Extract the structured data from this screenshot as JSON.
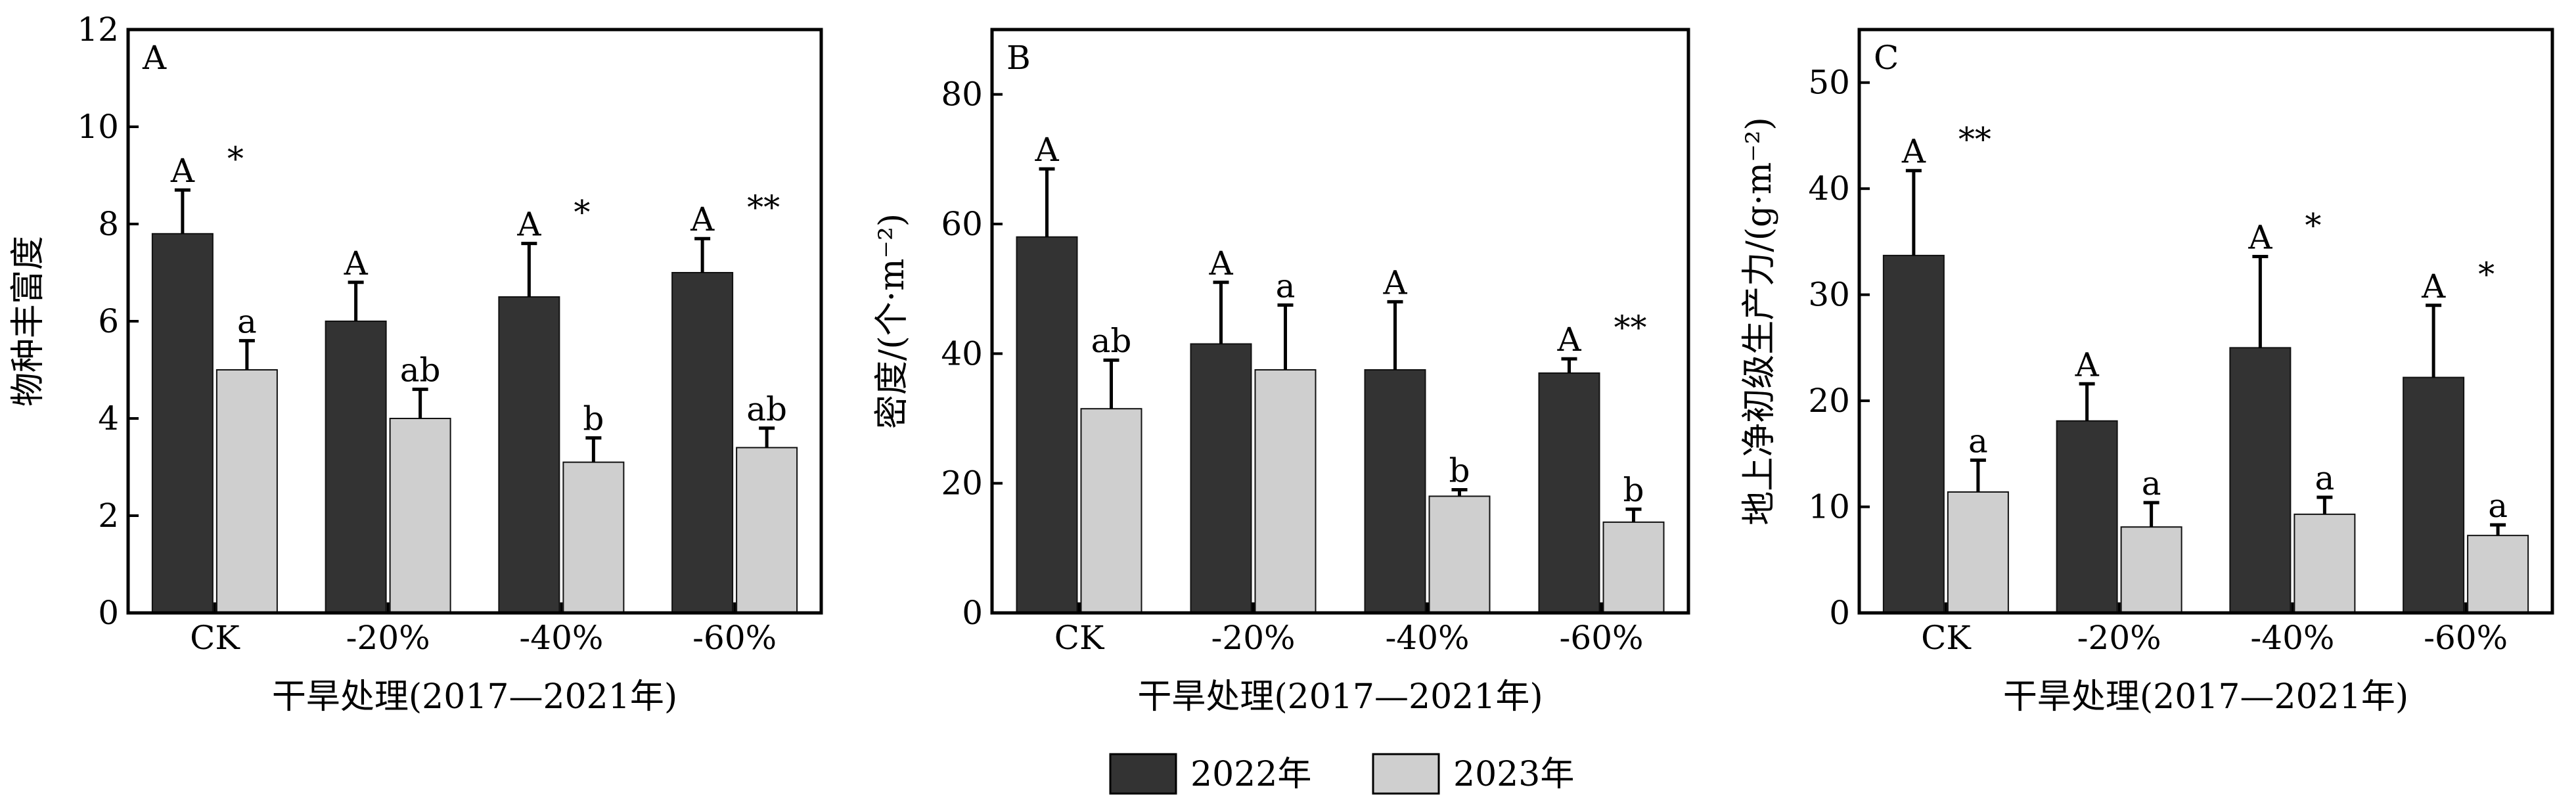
{
  "chart_data": [
    {
      "type": "bar",
      "panel_label": "A",
      "xlabel": "干旱处理(2017—2021年)",
      "ylabel": "物种丰富度",
      "ylim": [
        0,
        12
      ],
      "yticks": [
        0,
        2,
        4,
        6,
        8,
        10,
        12
      ],
      "categories": [
        "CK",
        "-20%",
        "-40%",
        "-60%"
      ],
      "series": [
        {
          "name": "2022年",
          "values": [
            7.8,
            6.0,
            6.5,
            7.0
          ],
          "errors": [
            0.9,
            0.8,
            1.1,
            0.7
          ],
          "letters": [
            "A",
            "A",
            "A",
            "A"
          ]
        },
        {
          "name": "2023年",
          "values": [
            5.0,
            4.0,
            3.1,
            3.4
          ],
          "errors": [
            0.6,
            0.6,
            0.5,
            0.4
          ],
          "letters": [
            "a",
            "ab",
            "b",
            "ab"
          ]
        }
      ],
      "significance": [
        "*",
        "",
        "*",
        "**"
      ]
    },
    {
      "type": "bar",
      "panel_label": "B",
      "xlabel": "干旱处理(2017—2021年)",
      "ylabel": "密度/(个·m⁻²)",
      "ylim": [
        0,
        90
      ],
      "yticks": [
        0,
        20,
        40,
        60,
        80
      ],
      "categories": [
        "CK",
        "-20%",
        "-40%",
        "-60%"
      ],
      "series": [
        {
          "name": "2022年",
          "values": [
            58,
            41.5,
            37.5,
            37
          ],
          "errors": [
            10.5,
            9.5,
            10.5,
            2.2
          ],
          "letters": [
            "A",
            "A",
            "A",
            "A"
          ]
        },
        {
          "name": "2023年",
          "values": [
            31.5,
            37.5,
            18,
            14
          ],
          "errors": [
            7.5,
            10,
            1,
            2
          ],
          "letters": [
            "ab",
            "a",
            "b",
            "b"
          ]
        }
      ],
      "significance": [
        "",
        "",
        "",
        "**"
      ]
    },
    {
      "type": "bar",
      "panel_label": "C",
      "xlabel": "干旱处理(2017—2021年)",
      "ylabel": "地上净初级生产力/(g·m⁻²)",
      "ylim": [
        0,
        55
      ],
      "yticks": [
        0,
        10,
        20,
        30,
        40,
        50
      ],
      "categories": [
        "CK",
        "-20%",
        "-40%",
        "-60%"
      ],
      "series": [
        {
          "name": "2022年",
          "values": [
            33.7,
            18.1,
            25.0,
            22.2
          ],
          "errors": [
            8.0,
            3.5,
            8.6,
            6.8
          ],
          "letters": [
            "A",
            "A",
            "A",
            "A"
          ]
        },
        {
          "name": "2023年",
          "values": [
            11.4,
            8.1,
            9.3,
            7.3
          ],
          "errors": [
            3.0,
            2.3,
            1.6,
            1.0
          ],
          "letters": [
            "a",
            "a",
            "a",
            "a"
          ]
        }
      ],
      "significance": [
        "**",
        "",
        "*",
        "*"
      ]
    }
  ],
  "legend": [
    {
      "label": "2022年",
      "color": "#333333"
    },
    {
      "label": "2023年",
      "color": "#cfcfcf"
    }
  ],
  "colors": {
    "dark_bar": "#333333",
    "light_bar": "#cfcfcf"
  }
}
